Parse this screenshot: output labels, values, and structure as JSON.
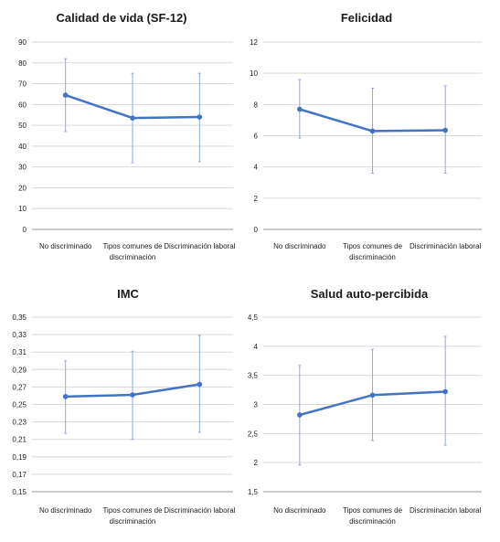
{
  "chart_data": [
    {
      "type": "line",
      "title": "Calidad de vida (SF-12)",
      "categories": [
        "No discriminado",
        "Tipos comunes de discriminación",
        "Discriminación laboral"
      ],
      "y_ticks": [
        "0",
        "10",
        "20",
        "30",
        "40",
        "50",
        "60",
        "70",
        "80",
        "90"
      ],
      "ylim": [
        0,
        90
      ],
      "values": [
        64.5,
        53.5,
        54
      ],
      "error_low": [
        47,
        32,
        32.5
      ],
      "error_high": [
        82,
        75,
        75
      ],
      "grid": "horizontal",
      "line_color": "#4472C4"
    },
    {
      "type": "line",
      "title": "Felicidad",
      "categories": [
        "No discriminado",
        "Tipos comunes de discriminación",
        "Discriminación laboral"
      ],
      "y_ticks": [
        "0",
        "2",
        "4",
        "6",
        "8",
        "10",
        "12"
      ],
      "ylim": [
        0,
        12
      ],
      "values": [
        7.7,
        6.3,
        6.35
      ],
      "error_low": [
        5.85,
        3.6,
        3.6
      ],
      "error_high": [
        9.6,
        9.05,
        9.2
      ],
      "grid": "horizontal",
      "line_color": "#4472C4"
    },
    {
      "type": "line",
      "title": "IMC",
      "categories": [
        "No discriminado",
        "Tipos comunes de discriminación",
        "Discriminación laboral"
      ],
      "y_ticks": [
        "0,15",
        "0,17",
        "0,19",
        "0,21",
        "0,23",
        "0,25",
        "0,27",
        "0,29",
        "0,31",
        "0,33",
        "0,35"
      ],
      "ylim": [
        0.15,
        0.35
      ],
      "values": [
        0.259,
        0.261,
        0.273
      ],
      "error_low": [
        0.217,
        0.21,
        0.218
      ],
      "error_high": [
        0.3,
        0.311,
        0.329
      ],
      "grid": "horizontal",
      "line_color": "#4472C4"
    },
    {
      "type": "line",
      "title": "Salud auto-percibida",
      "categories": [
        "No discriminado",
        "Tipos comunes de discriminación",
        "Discriminación laboral"
      ],
      "y_ticks": [
        "1,5",
        "2",
        "2,5",
        "3",
        "3,5",
        "4",
        "4,5"
      ],
      "ylim": [
        1.5,
        4.5
      ],
      "values": [
        2.82,
        3.16,
        3.22
      ],
      "error_low": [
        1.96,
        2.38,
        2.3
      ],
      "error_high": [
        3.67,
        3.95,
        4.17
      ],
      "grid": "horizontal",
      "line_color": "#4472C4"
    }
  ]
}
